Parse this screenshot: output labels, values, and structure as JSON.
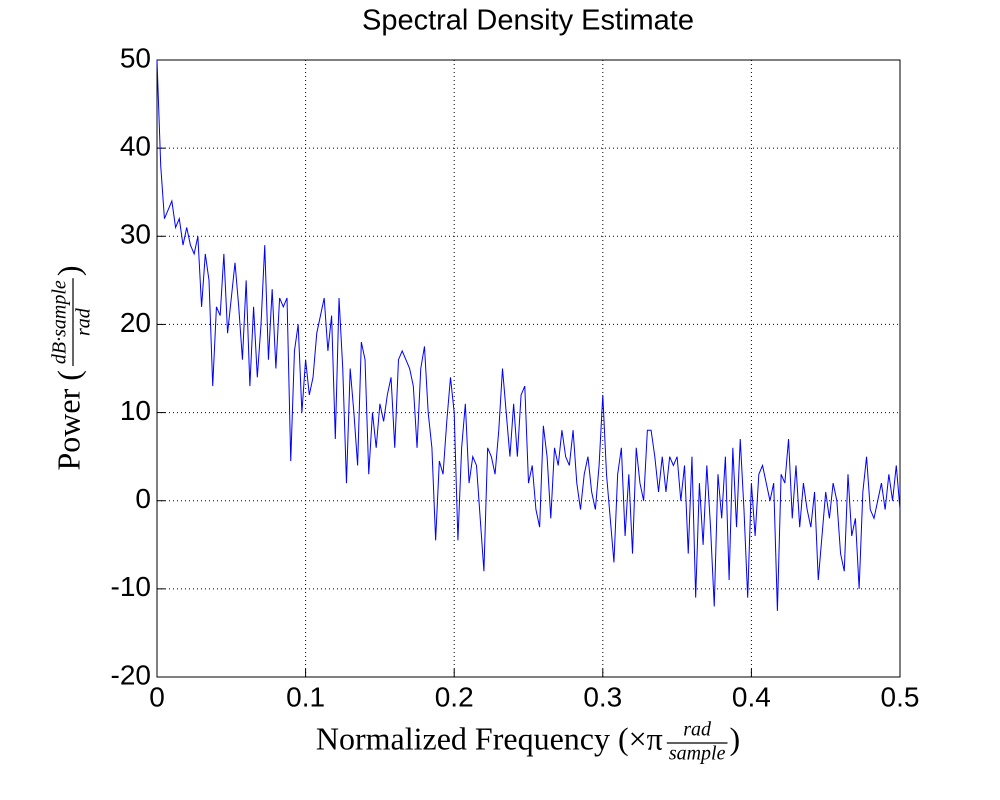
{
  "chart_data": {
    "type": "line",
    "title": "Spectral Density Estimate",
    "xlabel": {
      "prefix": "Normalized Frequency (×π",
      "numerator": "rad",
      "denominator": "sample",
      "suffix": ")"
    },
    "ylabel": {
      "prefix": "Power (",
      "numerator": "dB·sample",
      "denominator": "rad",
      "suffix": ")"
    },
    "xlim": [
      0,
      0.5
    ],
    "ylim": [
      -20,
      50
    ],
    "xticks": [
      0,
      0.1,
      0.2,
      0.3,
      0.4,
      0.5
    ],
    "yticks": [
      -20,
      -10,
      0,
      10,
      20,
      30,
      40,
      50
    ],
    "grid": true,
    "x": [
      0,
      0.0025,
      0.005,
      0.0075,
      0.01,
      0.0125,
      0.015,
      0.0175,
      0.02,
      0.0225,
      0.025,
      0.0275,
      0.03,
      0.0325,
      0.035,
      0.0375,
      0.04,
      0.0425,
      0.045,
      0.0475,
      0.05,
      0.0525,
      0.055,
      0.0575,
      0.06,
      0.0625,
      0.065,
      0.0675,
      0.07,
      0.0725,
      0.075,
      0.0775,
      0.08,
      0.0825,
      0.085,
      0.0875,
      0.09,
      0.0925,
      0.095,
      0.0975,
      0.1,
      0.1025,
      0.105,
      0.1075,
      0.11,
      0.1125,
      0.115,
      0.1175,
      0.12,
      0.1225,
      0.125,
      0.1275,
      0.13,
      0.1325,
      0.135,
      0.1375,
      0.14,
      0.1425,
      0.145,
      0.1475,
      0.15,
      0.1525,
      0.155,
      0.1575,
      0.16,
      0.1625,
      0.165,
      0.1675,
      0.17,
      0.1725,
      0.175,
      0.1775,
      0.18,
      0.1825,
      0.185,
      0.1875,
      0.19,
      0.1925,
      0.195,
      0.1975,
      0.2,
      0.2025,
      0.205,
      0.2075,
      0.21,
      0.2125,
      0.215,
      0.2175,
      0.22,
      0.2225,
      0.225,
      0.2275,
      0.23,
      0.2325,
      0.235,
      0.2375,
      0.24,
      0.2425,
      0.245,
      0.2475,
      0.25,
      0.2525,
      0.255,
      0.2575,
      0.26,
      0.2625,
      0.265,
      0.2675,
      0.27,
      0.2725,
      0.275,
      0.2775,
      0.28,
      0.2825,
      0.285,
      0.2875,
      0.29,
      0.2925,
      0.295,
      0.2975,
      0.3,
      0.3025,
      0.305,
      0.3075,
      0.31,
      0.3125,
      0.315,
      0.3175,
      0.32,
      0.3225,
      0.325,
      0.3275,
      0.33,
      0.3325,
      0.335,
      0.3375,
      0.34,
      0.3425,
      0.345,
      0.3475,
      0.35,
      0.3525,
      0.355,
      0.3575,
      0.36,
      0.3625,
      0.365,
      0.3675,
      0.37,
      0.3725,
      0.375,
      0.3775,
      0.38,
      0.3825,
      0.385,
      0.3875,
      0.39,
      0.3925,
      0.395,
      0.3975,
      0.4,
      0.4025,
      0.405,
      0.4075,
      0.41,
      0.4125,
      0.415,
      0.4175,
      0.42,
      0.4225,
      0.425,
      0.4275,
      0.43,
      0.4325,
      0.435,
      0.4375,
      0.44,
      0.4425,
      0.445,
      0.4475,
      0.45,
      0.4525,
      0.455,
      0.4575,
      0.46,
      0.4625,
      0.465,
      0.4675,
      0.47,
      0.4725,
      0.475,
      0.4775,
      0.48,
      0.4825,
      0.485,
      0.4875,
      0.49,
      0.4925,
      0.495,
      0.4975,
      0.5
    ],
    "series": [
      {
        "color": "#0000ff",
        "values": [
          50,
          38,
          32,
          33,
          34,
          31,
          32,
          29,
          31,
          29,
          28,
          30,
          22,
          28,
          25,
          13,
          22,
          21,
          28,
          19,
          23,
          27,
          22,
          16,
          25,
          13,
          22,
          14,
          20,
          29,
          16,
          24,
          15,
          23,
          22,
          23,
          4.5,
          17,
          20,
          10,
          16,
          12,
          14,
          19,
          21,
          23,
          17,
          21,
          7,
          23,
          15,
          2,
          15,
          10,
          4,
          18,
          16,
          3,
          10,
          6,
          11,
          9,
          12,
          14,
          6,
          16,
          17,
          16,
          15,
          13,
          6,
          15,
          17.5,
          10,
          6,
          -4.5,
          4.5,
          3,
          9,
          14,
          10,
          -4.5,
          6,
          11,
          2,
          5,
          4,
          -2,
          -8,
          6,
          5,
          3,
          8,
          15,
          10,
          5,
          11,
          5,
          12,
          13,
          2,
          4,
          -1,
          -3,
          8.5,
          5,
          -2,
          6,
          4,
          8,
          5,
          4,
          8,
          2,
          -1,
          3,
          5,
          1,
          -1,
          4,
          12,
          3,
          -2,
          -7,
          3,
          6,
          -4,
          3,
          -6,
          6,
          2,
          0,
          8,
          8,
          5,
          1,
          5,
          1,
          5,
          4,
          5,
          0,
          4,
          -6,
          5,
          -11,
          2,
          -5,
          4,
          -3,
          -12,
          3,
          -2,
          5,
          -9,
          6,
          -3,
          7,
          -1,
          -11,
          2,
          -4,
          3,
          4,
          2,
          0,
          2,
          -12.5,
          3,
          2,
          7,
          -2,
          4,
          -3,
          2,
          -1,
          -3,
          1,
          -9,
          -4,
          1,
          -2,
          2,
          0,
          -6,
          -8,
          3,
          -4,
          -2,
          -10,
          1,
          5,
          -1,
          -2,
          0,
          2,
          -1,
          3,
          0,
          4,
          -1
        ]
      }
    ]
  }
}
